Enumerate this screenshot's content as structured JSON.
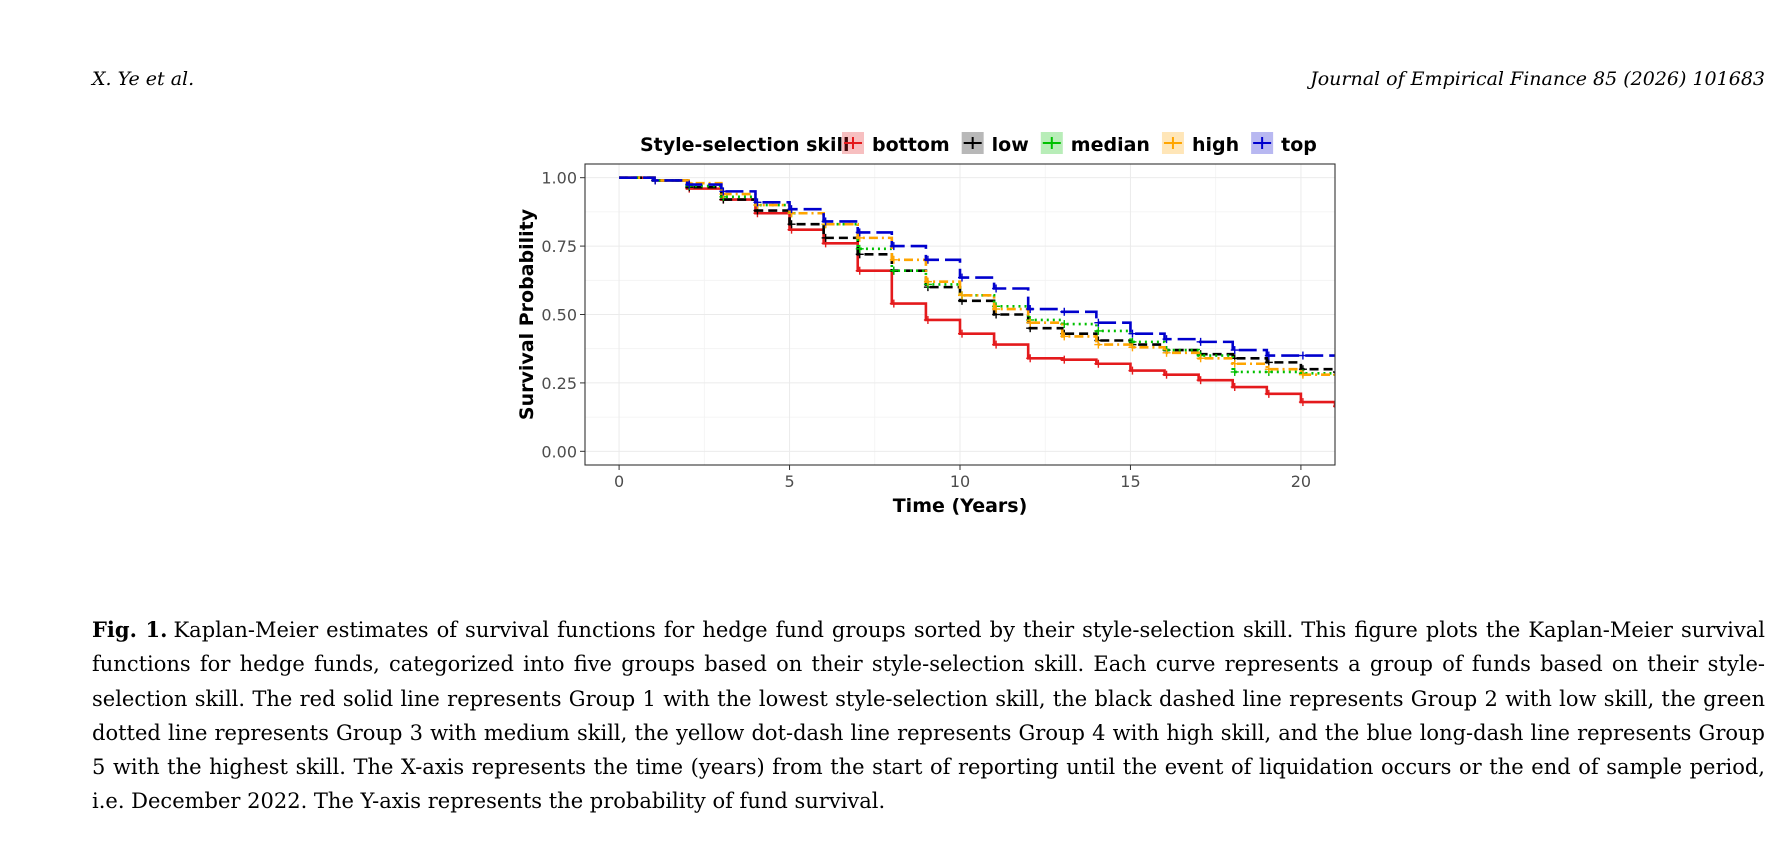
{
  "header": {
    "authors": "X. Ye et al.",
    "journal": "Journal of Empirical Finance 85 (2026) 101683"
  },
  "caption": {
    "label": "Fig. 1.",
    "text": "Kaplan-Meier estimates of survival functions for hedge fund groups sorted by their style-selection skill. This figure plots the Kaplan-Meier survival functions for hedge funds, categorized into five groups based on their style-selection skill. Each curve represents a group of funds based on their style-selection skill. The red solid line represents Group 1 with the lowest style-selection skill, the black dashed line represents Group 2 with low skill, the green dotted line represents Group 3 with medium skill, the yellow dot-dash line represents Group 4 with high skill, and the blue long-dash line represents Group 5 with the highest skill. The X-axis represents the time (years) from the start of reporting until the event of liquidation occurs or the end of sample period, i.e. December 2022. The Y-axis represents the probability of fund survival."
  },
  "chart_data": {
    "type": "line",
    "subtype": "step",
    "title": "",
    "legend_title": "Style-selection skill",
    "legend_position": "top",
    "xlabel": "Time (Years)",
    "ylabel": "Survival Probability",
    "xlim": [
      -1,
      21
    ],
    "ylim": [
      -0.05,
      1.05
    ],
    "xticks": [
      0,
      5,
      10,
      15,
      20
    ],
    "xtick_labels": [
      "0",
      "5",
      "10",
      "15",
      "20"
    ],
    "yticks": [
      0,
      0.25,
      0.5,
      0.75,
      1
    ],
    "ytick_labels": [
      "0.00",
      "0.25",
      "0.50",
      "0.75",
      "1.00"
    ],
    "grid": true,
    "series": [
      {
        "name": "bottom",
        "color": "#e41a1c",
        "linestyle": "solid",
        "x": [
          0,
          1,
          2,
          3,
          4,
          5,
          6,
          7,
          8,
          9,
          10,
          11,
          12,
          13,
          14,
          15,
          16,
          17,
          18,
          19,
          20,
          21
        ],
        "y": [
          1.0,
          0.99,
          0.96,
          0.92,
          0.87,
          0.81,
          0.76,
          0.66,
          0.54,
          0.48,
          0.43,
          0.39,
          0.34,
          0.335,
          0.32,
          0.295,
          0.28,
          0.26,
          0.235,
          0.21,
          0.18,
          0.165
        ]
      },
      {
        "name": "low",
        "color": "#000000",
        "linestyle": "dashed",
        "x": [
          0,
          1,
          2,
          3,
          4,
          5,
          6,
          7,
          8,
          9,
          10,
          11,
          12,
          13,
          14,
          15,
          16,
          17,
          18,
          19,
          20,
          21
        ],
        "y": [
          1.0,
          0.99,
          0.965,
          0.92,
          0.88,
          0.83,
          0.78,
          0.72,
          0.66,
          0.6,
          0.55,
          0.5,
          0.45,
          0.43,
          0.405,
          0.39,
          0.37,
          0.355,
          0.34,
          0.325,
          0.3,
          0.29
        ]
      },
      {
        "name": "median",
        "color": "#00c000",
        "linestyle": "dotted",
        "x": [
          0,
          1,
          2,
          3,
          4,
          5,
          6,
          7,
          8,
          9,
          10,
          11,
          12,
          13,
          14,
          15,
          16,
          17,
          18,
          19,
          20,
          21
        ],
        "y": [
          1.0,
          0.99,
          0.97,
          0.93,
          0.9,
          0.87,
          0.83,
          0.74,
          0.66,
          0.61,
          0.57,
          0.53,
          0.48,
          0.465,
          0.44,
          0.4,
          0.37,
          0.35,
          0.29,
          0.29,
          0.285,
          0.28
        ]
      },
      {
        "name": "high",
        "color": "#ffa500",
        "linestyle": "dotdash",
        "x": [
          0,
          1,
          2,
          3,
          4,
          5,
          6,
          7,
          8,
          9,
          10,
          11,
          12,
          13,
          14,
          15,
          16,
          17,
          18,
          19,
          20,
          21
        ],
        "y": [
          1.0,
          0.99,
          0.98,
          0.94,
          0.9,
          0.87,
          0.83,
          0.78,
          0.7,
          0.62,
          0.57,
          0.52,
          0.47,
          0.42,
          0.39,
          0.38,
          0.36,
          0.34,
          0.32,
          0.3,
          0.28,
          0.28
        ]
      },
      {
        "name": "top",
        "color": "#0000cd",
        "linestyle": "longdash",
        "x": [
          0,
          1,
          2,
          3,
          4,
          5,
          6,
          7,
          8,
          9,
          10,
          11,
          12,
          13,
          14,
          15,
          16,
          17,
          18,
          19,
          20,
          21
        ],
        "y": [
          1.0,
          0.99,
          0.975,
          0.95,
          0.91,
          0.885,
          0.84,
          0.8,
          0.75,
          0.7,
          0.635,
          0.595,
          0.52,
          0.51,
          0.47,
          0.43,
          0.41,
          0.4,
          0.37,
          0.35,
          0.35,
          0.35
        ]
      }
    ]
  }
}
